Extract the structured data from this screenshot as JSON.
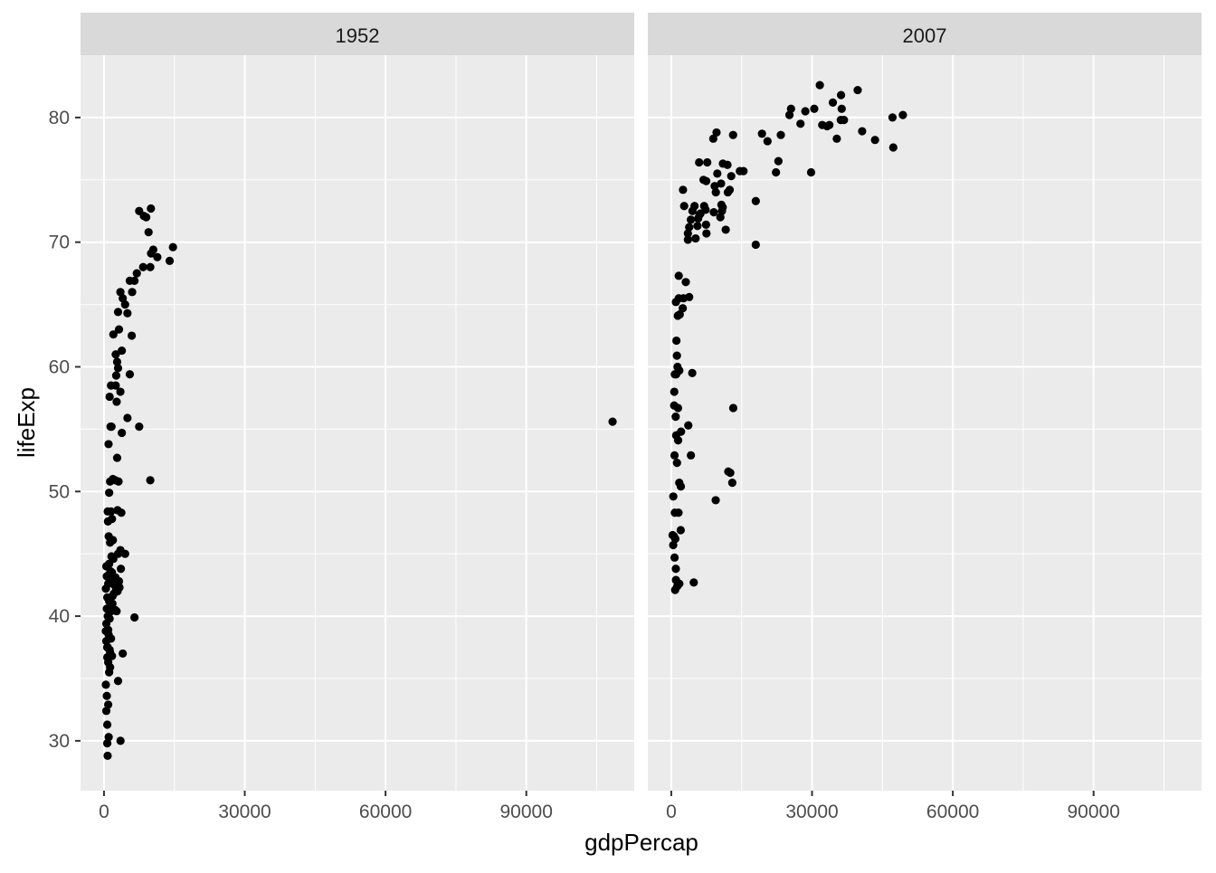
{
  "chart_data": {
    "type": "scatter",
    "xlabel": "gdpPercap",
    "ylabel": "lifeExp",
    "xlim": [
      -5000,
      113000
    ],
    "ylim": [
      26,
      85
    ],
    "x_ticks": [
      0,
      30000,
      60000,
      90000
    ],
    "x_tick_labels": [
      "0",
      "30000",
      "60000",
      "90000"
    ],
    "y_ticks": [
      30,
      40,
      50,
      60,
      70,
      80
    ],
    "y_tick_labels": [
      "30",
      "40",
      "50",
      "60",
      "70",
      "80"
    ],
    "x_minor_gridlines": [
      15000,
      45000,
      75000,
      105000
    ],
    "y_minor_gridlines": [
      35,
      45,
      55,
      65,
      75
    ],
    "grid": true,
    "legend": "none",
    "panel_background": "#EBEBEB",
    "strip_background": "#D9D9D9",
    "point_color": "#000000",
    "facets": [
      {
        "label": "1952",
        "points": [
          [
            779,
            28.8
          ],
          [
            1601,
            55.2
          ],
          [
            2449,
            43.1
          ],
          [
            3521,
            30.0
          ],
          [
            5911,
            62.5
          ],
          [
            10040,
            69.1
          ],
          [
            9867,
            68.0
          ],
          [
            9867,
            50.9
          ],
          [
            684,
            37.5
          ],
          [
            8343,
            68.0
          ],
          [
            1063,
            38.2
          ],
          [
            2677,
            40.4
          ],
          [
            973,
            53.8
          ],
          [
            851,
            47.6
          ],
          [
            11367,
            68.8
          ],
          [
            7500,
            72.5
          ],
          [
            9000,
            72.0
          ],
          [
            8500,
            72.1
          ],
          [
            10000,
            72.7
          ],
          [
            9500,
            70.8
          ],
          [
            14000,
            68.5
          ],
          [
            14700,
            69.6
          ],
          [
            10500,
            69.4
          ],
          [
            108382,
            55.6
          ],
          [
            7500,
            55.2
          ],
          [
            6500,
            39.9
          ],
          [
            4000,
            37.0
          ],
          [
            3000,
            34.8
          ],
          [
            5000,
            55.9
          ],
          [
            3800,
            54.7
          ],
          [
            5500,
            59.4
          ],
          [
            6000,
            66.0
          ],
          [
            6500,
            66.9
          ],
          [
            7000,
            67.5
          ],
          [
            4500,
            65.0
          ],
          [
            5000,
            64.3
          ],
          [
            5500,
            66.9
          ],
          [
            4000,
            65.5
          ],
          [
            3500,
            66.0
          ],
          [
            3000,
            64.4
          ],
          [
            3200,
            63.0
          ],
          [
            3800,
            61.3
          ],
          [
            2500,
            61.0
          ],
          [
            2800,
            60.4
          ],
          [
            3000,
            59.9
          ],
          [
            2600,
            59.3
          ],
          [
            2500,
            58.5
          ],
          [
            3500,
            58.0
          ],
          [
            1500,
            58.5
          ],
          [
            1200,
            57.6
          ],
          [
            2700,
            57.2
          ],
          [
            2000,
            62.6
          ],
          [
            2800,
            52.7
          ],
          [
            3100,
            50.8
          ],
          [
            2400,
            50.9
          ],
          [
            1300,
            50.8
          ],
          [
            1100,
            49.9
          ],
          [
            1500,
            48.4
          ],
          [
            800,
            48.4
          ],
          [
            1700,
            47.8
          ],
          [
            1000,
            46.4
          ],
          [
            1300,
            45.9
          ],
          [
            3700,
            48.3
          ],
          [
            3500,
            45.3
          ],
          [
            4500,
            45.0
          ],
          [
            3000,
            45.0
          ],
          [
            2000,
            44.6
          ],
          [
            3600,
            43.8
          ],
          [
            1700,
            43.5
          ],
          [
            2200,
            43.0
          ],
          [
            3200,
            42.8
          ],
          [
            3300,
            42.3
          ],
          [
            2900,
            42.0
          ],
          [
            2100,
            41.8
          ],
          [
            1800,
            41.0
          ],
          [
            1500,
            40.4
          ],
          [
            2400,
            40.5
          ],
          [
            500,
            44.0
          ],
          [
            600,
            43.2
          ],
          [
            900,
            42.6
          ],
          [
            400,
            42.2
          ],
          [
            700,
            41.5
          ],
          [
            1100,
            41.2
          ],
          [
            600,
            40.6
          ],
          [
            800,
            40.0
          ],
          [
            500,
            39.4
          ],
          [
            400,
            38.8
          ],
          [
            1000,
            38.5
          ],
          [
            500,
            38.0
          ],
          [
            800,
            37.5
          ],
          [
            1200,
            37.3
          ],
          [
            700,
            36.7
          ],
          [
            900,
            36.3
          ],
          [
            1100,
            35.5
          ],
          [
            400,
            34.5
          ],
          [
            600,
            33.6
          ],
          [
            900,
            32.9
          ],
          [
            500,
            32.4
          ],
          [
            700,
            31.3
          ],
          [
            1000,
            30.3
          ],
          [
            700,
            29.8
          ],
          [
            1400,
            43.6
          ],
          [
            1200,
            43.4
          ],
          [
            1600,
            43.0
          ],
          [
            2200,
            42.5
          ],
          [
            2600,
            42.1
          ],
          [
            1800,
            41.6
          ],
          [
            1200,
            39.8
          ],
          [
            1500,
            38.2
          ],
          [
            1300,
            37.1
          ],
          [
            1700,
            36.8
          ],
          [
            1900,
            46.1
          ],
          [
            1600,
            44.8
          ],
          [
            1100,
            44.2
          ],
          [
            1900,
            51.0
          ],
          [
            1400,
            55.2
          ],
          [
            2900,
            48.5
          ],
          [
            900,
            38.9
          ],
          [
            1300,
            35.9
          ]
        ]
      },
      {
        "label": "2007",
        "points": [
          [
            975,
            43.8
          ],
          [
            5937,
            76.4
          ],
          [
            6223,
            72.3
          ],
          [
            4797,
            42.7
          ],
          [
            12779,
            75.3
          ],
          [
            34435,
            81.2
          ],
          [
            36126,
            79.8
          ],
          [
            29796,
            75.6
          ],
          [
            1391,
            64.1
          ],
          [
            33692,
            79.4
          ],
          [
            1441,
            56.7
          ],
          [
            3822,
            65.6
          ],
          [
            7446,
            74.9
          ],
          [
            12570,
            51.5
          ],
          [
            9065,
            72.4
          ],
          [
            10681,
            73.0
          ],
          [
            1217,
            52.3
          ],
          [
            430,
            49.6
          ],
          [
            1713,
            59.7
          ],
          [
            2042,
            50.4
          ],
          [
            36319,
            80.7
          ],
          [
            706,
            44.7
          ],
          [
            1704,
            50.7
          ],
          [
            13172,
            78.6
          ],
          [
            4959,
            72.9
          ],
          [
            7006,
            72.9
          ],
          [
            986,
            65.2
          ],
          [
            278,
            46.5
          ],
          [
            3633,
            55.3
          ],
          [
            9645,
            78.8
          ],
          [
            1545,
            48.3
          ],
          [
            14619,
            75.7
          ],
          [
            8948,
            78.3
          ],
          [
            22833,
            76.5
          ],
          [
            35278,
            78.3
          ],
          [
            2082,
            54.8
          ],
          [
            6025,
            72.2
          ],
          [
            6873,
            75.0
          ],
          [
            5581,
            71.3
          ],
          [
            5728,
            71.9
          ],
          [
            12154,
            51.6
          ],
          [
            641,
            58.0
          ],
          [
            690,
            52.9
          ],
          [
            33207,
            79.3
          ],
          [
            30470,
            80.7
          ],
          [
            13206,
            56.7
          ],
          [
            752,
            59.4
          ],
          [
            32170,
            79.4
          ],
          [
            1328,
            60.0
          ],
          [
            27538,
            79.5
          ],
          [
            5186,
            70.3
          ],
          [
            943,
            56.0
          ],
          [
            579,
            46.4
          ],
          [
            1202,
            60.9
          ],
          [
            3548,
            70.2
          ],
          [
            39725,
            82.2
          ],
          [
            18009,
            73.3
          ],
          [
            36181,
            81.8
          ],
          [
            2452,
            64.7
          ],
          [
            3541,
            70.7
          ],
          [
            11606,
            71.0
          ],
          [
            4471,
            59.5
          ],
          [
            40676,
            78.9
          ],
          [
            25523,
            80.7
          ],
          [
            28570,
            80.5
          ],
          [
            7321,
            72.6
          ],
          [
            31656,
            82.6
          ],
          [
            4519,
            72.5
          ],
          [
            1463,
            54.1
          ],
          [
            1593,
            67.3
          ],
          [
            23348,
            78.6
          ],
          [
            47307,
            77.6
          ],
          [
            10461,
            72.0
          ],
          [
            1569,
            42.6
          ],
          [
            414,
            45.7
          ],
          [
            12057,
            74.0
          ],
          [
            1045,
            59.4
          ],
          [
            759,
            48.3
          ],
          [
            12452,
            74.2
          ],
          [
            1042,
            54.5
          ],
          [
            1803,
            64.2
          ],
          [
            10957,
            72.8
          ],
          [
            11978,
            76.2
          ],
          [
            3095,
            66.8
          ],
          [
            9254,
            74.5
          ],
          [
            3820,
            71.2
          ],
          [
            824,
            42.1
          ],
          [
            4185,
            52.9
          ],
          [
            1097,
            62.1
          ],
          [
            36798,
            79.8
          ],
          [
            25185,
            80.2
          ],
          [
            2749,
            72.9
          ],
          [
            619,
            56.9
          ],
          [
            2014,
            46.9
          ],
          [
            49357,
            80.2
          ],
          [
            22316,
            75.6
          ],
          [
            2606,
            65.5
          ],
          [
            9809,
            75.5
          ],
          [
            4173,
            71.8
          ],
          [
            7409,
            71.4
          ],
          [
            15390,
            75.7
          ],
          [
            20510,
            78.1
          ],
          [
            19329,
            78.7
          ],
          [
            7670,
            76.4
          ],
          [
            10808,
            72.5
          ],
          [
            863,
            46.2
          ],
          [
            1598,
            65.5
          ],
          [
            1713,
            42.6
          ],
          [
            47143,
            80.0
          ],
          [
            43421,
            78.2
          ],
          [
            1270,
            42.4
          ],
          [
            10612,
            74.7
          ],
          [
            18008,
            69.8
          ],
          [
            9470,
            49.3
          ],
          [
            13000,
            50.7
          ],
          [
            1000,
            42.9
          ],
          [
            2500,
            74.2
          ],
          [
            9500,
            74.0
          ],
          [
            11000,
            76.3
          ],
          [
            7500,
            70.7
          ]
        ]
      }
    ]
  }
}
